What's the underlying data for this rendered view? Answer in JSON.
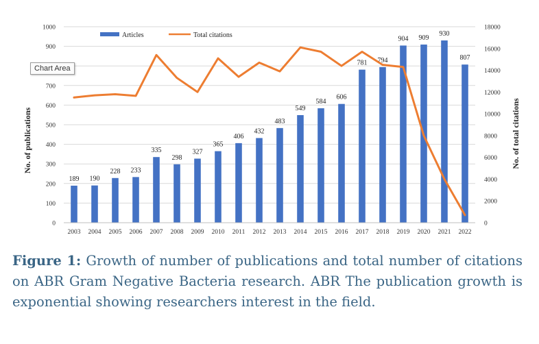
{
  "chart_data": {
    "type": "bar+line",
    "categories": [
      "2003",
      "2004",
      "2005",
      "2006",
      "2007",
      "2008",
      "2009",
      "2010",
      "2011",
      "2012",
      "2013",
      "2014",
      "2015",
      "2016",
      "2017",
      "2018",
      "2019",
      "2020",
      "2021",
      "2022"
    ],
    "series": [
      {
        "name": "Articles",
        "type": "bar",
        "axis": "left",
        "color": "#4472c4",
        "values": [
          189,
          190,
          228,
          233,
          335,
          298,
          327,
          365,
          406,
          432,
          483,
          549,
          584,
          606,
          781,
          794,
          904,
          909,
          930,
          807
        ]
      },
      {
        "name": "Total citations",
        "type": "line",
        "axis": "right",
        "color": "#ed7d31",
        "values": [
          11500,
          11700,
          11800,
          11650,
          15400,
          13300,
          12000,
          15100,
          13400,
          14700,
          13900,
          16100,
          15700,
          14400,
          15700,
          14500,
          14300,
          8000,
          4000,
          700
        ]
      }
    ],
    "ylabel": "No. of publications",
    "y2label": "No. of total citations",
    "ylim": [
      0,
      1000
    ],
    "y2lim": [
      0,
      18000
    ],
    "yticks": [
      "0",
      "100",
      "200",
      "300",
      "400",
      "500",
      "600",
      "700",
      "800",
      "900",
      "1000"
    ],
    "y2ticks": [
      "0",
      "2000",
      "4000",
      "6000",
      "8000",
      "10000",
      "12000",
      "14000",
      "16000",
      "18000"
    ],
    "grid": true,
    "legend": "top-left"
  },
  "tooltip": "Chart Area",
  "caption": {
    "label": "Figure 1:",
    "text": "Growth of number of publications and total number of citations on ABR Gram Negative Bacteria research. ABR The publication growth is exponential showing researchers interest in the field."
  }
}
